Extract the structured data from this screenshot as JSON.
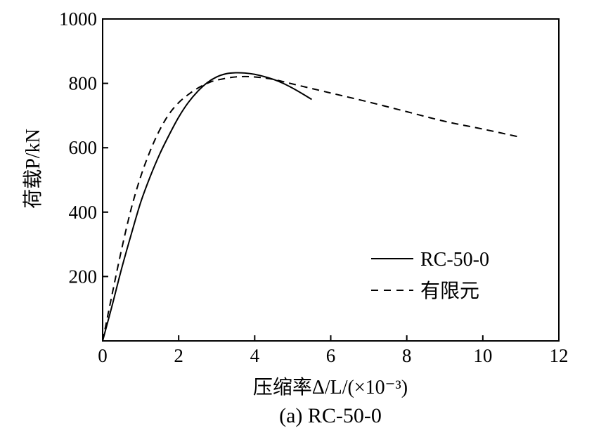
{
  "chart_data": {
    "type": "line",
    "title": "",
    "caption": "(a) RC-50-0",
    "xlabel": "压缩率Δ/L/(×10⁻³)",
    "ylabel": "荷载P/kN",
    "xlim": [
      0,
      12
    ],
    "ylim": [
      0,
      1000
    ],
    "xticks": [
      0,
      2,
      4,
      6,
      8,
      10,
      12
    ],
    "yticks": [
      200,
      400,
      600,
      800,
      1000
    ],
    "xtick_labels": [
      "0",
      "2",
      "4",
      "6",
      "8",
      "10",
      "12"
    ],
    "ytick_labels": [
      "200",
      "400",
      "600",
      "800",
      "1000"
    ],
    "grid": false,
    "legend_position": "right",
    "series": [
      {
        "name": "RC-50-0",
        "style": "solid",
        "color": "#000000",
        "x": [
          0,
          0.25,
          0.5,
          0.75,
          1.0,
          1.25,
          1.5,
          1.75,
          2.0,
          2.25,
          2.5,
          2.75,
          3.0,
          3.25,
          3.5,
          3.75,
          4.0,
          4.25,
          4.5,
          4.75,
          5.0,
          5.25,
          5.5
        ],
        "y": [
          0,
          110,
          225,
          330,
          430,
          510,
          580,
          640,
          695,
          740,
          775,
          802,
          820,
          830,
          833,
          832,
          828,
          821,
          812,
          800,
          785,
          768,
          750
        ]
      },
      {
        "name": "有限元",
        "style": "dashed",
        "color": "#000000",
        "x": [
          0,
          0.25,
          0.5,
          0.75,
          1.0,
          1.25,
          1.5,
          1.75,
          2.0,
          2.25,
          2.5,
          2.75,
          3.0,
          3.5,
          4.0,
          4.5,
          5.0,
          6.0,
          7.0,
          8.0,
          9.0,
          10.0,
          10.9
        ],
        "y": [
          0,
          145,
          285,
          410,
          510,
          590,
          655,
          705,
          740,
          765,
          785,
          800,
          810,
          820,
          820,
          812,
          798,
          770,
          742,
          712,
          682,
          658,
          635
        ]
      }
    ]
  }
}
